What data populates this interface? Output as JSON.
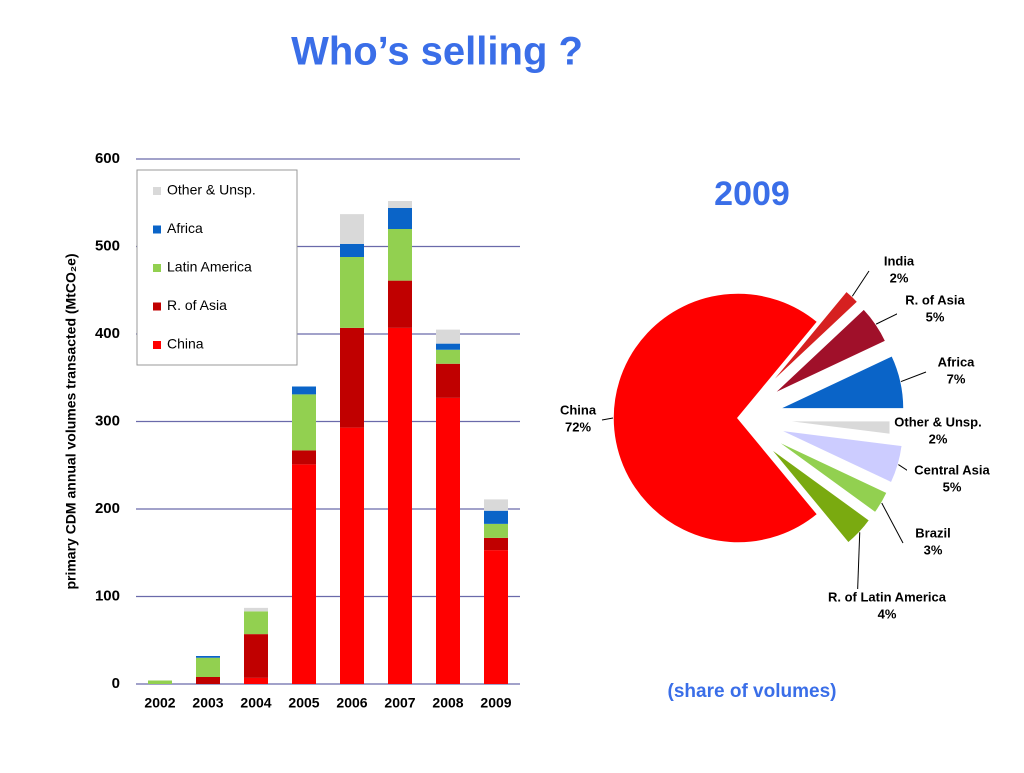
{
  "title": "Who’s selling ?",
  "chart_data": [
    {
      "type": "bar",
      "stacked": true,
      "y_label": "primary CDM annual volumes transacted (MtCO₂e)",
      "categories": [
        "2002",
        "2003",
        "2004",
        "2005",
        "2006",
        "2007",
        "2008",
        "2009"
      ],
      "series": [
        {
          "name": "China",
          "color": "#ff0000",
          "values": [
            0,
            0,
            7,
            251,
            293,
            407,
            327,
            153
          ]
        },
        {
          "name": "R. of Asia",
          "color": "#c00000",
          "values": [
            0,
            8,
            50,
            16,
            114,
            54,
            39,
            14
          ]
        },
        {
          "name": "Latin America",
          "color": "#92d050",
          "values": [
            4,
            22,
            26,
            64,
            81,
            59,
            16,
            16
          ]
        },
        {
          "name": "Africa",
          "color": "#0a64c8",
          "values": [
            0,
            2,
            0,
            9,
            15,
            24,
            7,
            15
          ]
        },
        {
          "name": "Other & Unsp.",
          "color": "#d9d9d9",
          "values": [
            0,
            0,
            4,
            0,
            34,
            8,
            16,
            13
          ]
        }
      ],
      "ylim": [
        0,
        600
      ],
      "yticks": [
        0,
        100,
        200,
        300,
        400,
        500,
        600
      ],
      "grid": true,
      "legend": "top-left"
    },
    {
      "type": "pie",
      "title": "2009",
      "subtitle": "(share of volumes)",
      "categories": [
        "China",
        "India",
        "R. of Asia",
        "Africa",
        "Other & Unsp.",
        "Central Asia",
        "Brazil",
        "R. of Latin America"
      ],
      "values": [
        72,
        2,
        5,
        7,
        2,
        5,
        3,
        4
      ],
      "value_labels": [
        "72%",
        "2%",
        "5%",
        "7%",
        "2%",
        "5%",
        "3%",
        "4%"
      ],
      "colors": [
        "#ff0000",
        "#d62020",
        "#a0102a",
        "#0a64c8",
        "#d9d9d9",
        "#ccccff",
        "#92d050",
        "#7aaa10"
      ]
    }
  ]
}
